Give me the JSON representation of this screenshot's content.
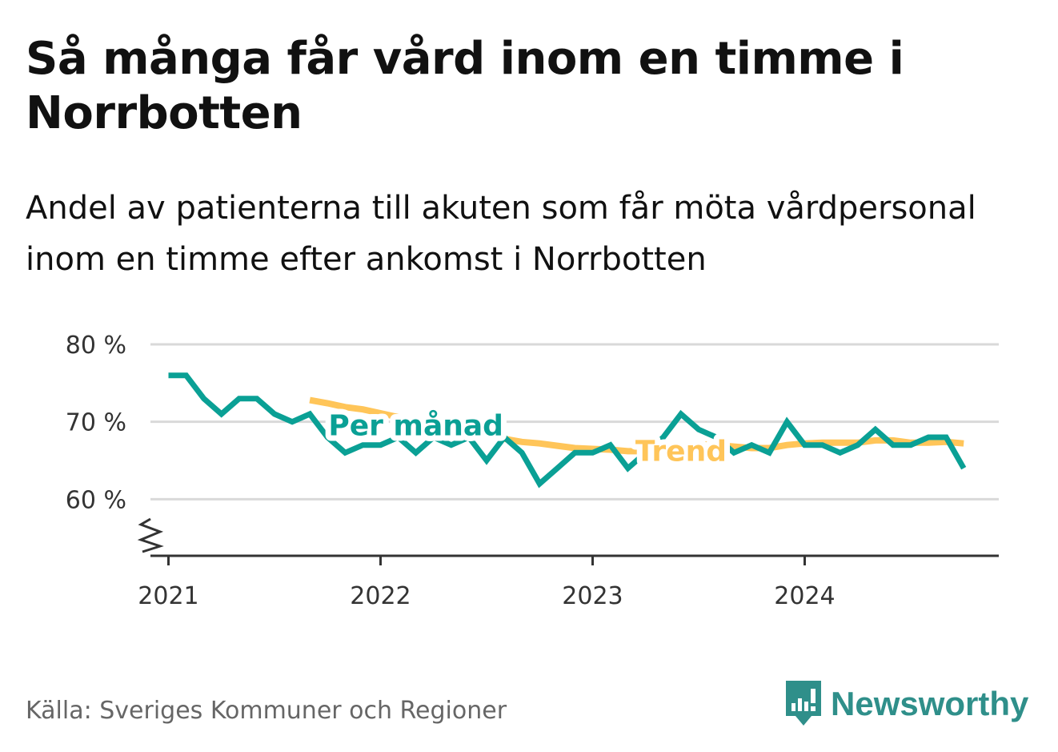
{
  "header": {
    "title": "Så många får vård inom en timme i Norrbotten",
    "subtitle": "Andel av patienterna till akuten som får möta vårdpersonal inom en timme efter ankomst i Norrbotten"
  },
  "footer": {
    "source": "Källa: Sveriges Kommuner och Regioner",
    "brand": "Newsworthy"
  },
  "colors": {
    "monthly": "#0aa095",
    "trend": "#ffc559",
    "grid": "#d9d9d9",
    "brand": "#2f8f8a"
  },
  "icons": {
    "brand_logo": "newsworthy-logo-icon",
    "axis_break": "axis-break-icon"
  },
  "chart_data": {
    "type": "line",
    "title": "Så många får vård inom en timme i Norrbotten",
    "xlabel": "",
    "ylabel": "",
    "ylim": [
      53,
      80
    ],
    "xlim": [
      "2020-12",
      "2024-12"
    ],
    "y_ticks": [
      60,
      70,
      80
    ],
    "y_tick_labels": [
      "60 %",
      "70 %",
      "80 %"
    ],
    "x_ticks": [
      "2021-01",
      "2022-01",
      "2023-01",
      "2024-01"
    ],
    "x_tick_labels": [
      "2021",
      "2022",
      "2023",
      "2024"
    ],
    "grid": true,
    "axis_break": true,
    "series": [
      {
        "name": "Per månad",
        "color": "#0aa095",
        "x": [
          "2021-01",
          "2021-02",
          "2021-03",
          "2021-04",
          "2021-05",
          "2021-06",
          "2021-07",
          "2021-08",
          "2021-09",
          "2021-10",
          "2021-11",
          "2021-12",
          "2022-01",
          "2022-02",
          "2022-03",
          "2022-04",
          "2022-05",
          "2022-06",
          "2022-07",
          "2022-08",
          "2022-09",
          "2022-10",
          "2022-11",
          "2022-12",
          "2023-01",
          "2023-02",
          "2023-03",
          "2023-04",
          "2023-05",
          "2023-06",
          "2023-07",
          "2023-08",
          "2023-09",
          "2023-10",
          "2023-11",
          "2023-12",
          "2024-01",
          "2024-02",
          "2024-03",
          "2024-04",
          "2024-05",
          "2024-06",
          "2024-07",
          "2024-08",
          "2024-09",
          "2024-10"
        ],
        "values": [
          76,
          76,
          73,
          71,
          73,
          73,
          71,
          70,
          71,
          68,
          66,
          67,
          67,
          68,
          66,
          68,
          67,
          68,
          65,
          68,
          66,
          62,
          64,
          66,
          66,
          67,
          64,
          66,
          68,
          71,
          69,
          68,
          66,
          67,
          66,
          70,
          67,
          67,
          66,
          67,
          69,
          67,
          67,
          68,
          68,
          64
        ]
      },
      {
        "name": "Trend",
        "color": "#ffc559",
        "x": [
          "2021-09",
          "2021-10",
          "2021-11",
          "2021-12",
          "2022-01",
          "2022-02",
          "2022-03",
          "2022-04",
          "2022-05",
          "2022-06",
          "2022-07",
          "2022-08",
          "2022-09",
          "2022-10",
          "2022-11",
          "2022-12",
          "2023-01",
          "2023-02",
          "2023-03",
          "2023-04",
          "2023-05",
          "2023-06",
          "2023-07",
          "2023-08",
          "2023-09",
          "2023-10",
          "2023-11",
          "2023-12",
          "2024-01",
          "2024-02",
          "2024-03",
          "2024-04",
          "2024-05",
          "2024-06",
          "2024-07",
          "2024-08",
          "2024-09",
          "2024-10"
        ],
        "values": [
          72.8,
          72.4,
          71.9,
          71.6,
          71.1,
          70.6,
          70.1,
          69.7,
          69.2,
          68.8,
          68.3,
          67.8,
          67.4,
          67.2,
          66.9,
          66.6,
          66.5,
          66.4,
          66.2,
          66.2,
          66.6,
          66.9,
          67.1,
          67.0,
          66.8,
          66.6,
          66.6,
          67.0,
          67.2,
          67.3,
          67.3,
          67.3,
          67.6,
          67.6,
          67.3,
          67.3,
          67.4,
          67.2
        ]
      }
    ],
    "annotations": [
      {
        "text": "Per månad",
        "series": "Per månad",
        "x": "2022-03",
        "y": 69.5
      },
      {
        "text": "Trend",
        "series": "Trend",
        "x": "2023-06",
        "y": 66.2
      }
    ]
  }
}
